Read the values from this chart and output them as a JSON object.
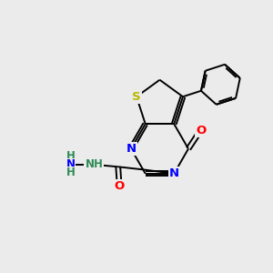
{
  "bg_color": "#ebebeb",
  "atom_colors": {
    "C": "#000000",
    "N": "#0000ff",
    "O": "#ff0000",
    "S": "#b8b800",
    "H": "#2e8b57"
  },
  "bond_color": "#000000",
  "bond_lw": 1.4,
  "font_size_atom": 9.5,
  "font_size_small": 8.5,
  "font_size_tiny": 7.5
}
